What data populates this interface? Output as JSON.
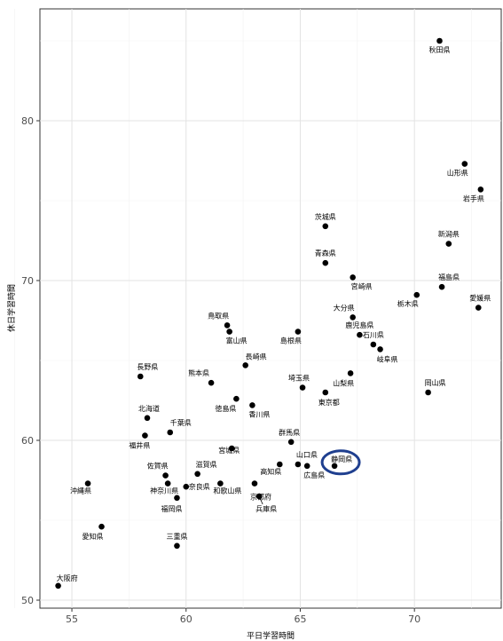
{
  "chart_data": {
    "type": "scatter",
    "title": "",
    "xlabel": "平日学習時間",
    "ylabel": "休日学習時間",
    "xlim": [
      53.6,
      73.8
    ],
    "ylim": [
      49.5,
      87.0
    ],
    "xticks": [
      55,
      60,
      65,
      70
    ],
    "yticks": [
      50,
      60,
      70,
      80
    ],
    "x_tick_labels": [
      "55",
      "60",
      "65",
      "70"
    ],
    "y_tick_labels": [
      "50",
      "60",
      "70",
      "80"
    ],
    "grid": true,
    "highlight_label": "静岡県",
    "points": [
      {
        "label": "秋田県",
        "x": 71.1,
        "y": 85.0
      },
      {
        "label": "山形県",
        "x": 72.2,
        "y": 77.3
      },
      {
        "label": "岩手県",
        "x": 72.9,
        "y": 75.7
      },
      {
        "label": "茨城県",
        "x": 66.1,
        "y": 73.4
      },
      {
        "label": "新潟県",
        "x": 71.5,
        "y": 72.3
      },
      {
        "label": "青森県",
        "x": 66.1,
        "y": 71.1
      },
      {
        "label": "宮崎県",
        "x": 67.3,
        "y": 70.2
      },
      {
        "label": "福島県",
        "x": 71.2,
        "y": 69.6
      },
      {
        "label": "栃木県",
        "x": 70.1,
        "y": 69.1
      },
      {
        "label": "愛媛県",
        "x": 72.8,
        "y": 68.3
      },
      {
        "label": "大分県",
        "x": 67.3,
        "y": 67.7
      },
      {
        "label": "鳥取県",
        "x": 61.8,
        "y": 67.2
      },
      {
        "label": "富山県",
        "x": 61.9,
        "y": 66.8
      },
      {
        "label": "島根県",
        "x": 64.9,
        "y": 66.8
      },
      {
        "label": "鹿児島県",
        "x": 67.6,
        "y": 66.6
      },
      {
        "label": "石川県",
        "x": 68.2,
        "y": 66.0
      },
      {
        "label": "岐阜県",
        "x": 68.5,
        "y": 65.7
      },
      {
        "label": "長崎県",
        "x": 62.6,
        "y": 64.7
      },
      {
        "label": "山梨県",
        "x": 67.2,
        "y": 64.2
      },
      {
        "label": "長野県",
        "x": 58.0,
        "y": 64.0
      },
      {
        "label": "熊本県",
        "x": 61.1,
        "y": 63.6
      },
      {
        "label": "埼玉県",
        "x": 65.1,
        "y": 63.3
      },
      {
        "label": "東京都",
        "x": 66.1,
        "y": 63.0
      },
      {
        "label": "岡山県",
        "x": 70.6,
        "y": 63.0
      },
      {
        "label": "徳島県",
        "x": 62.2,
        "y": 62.6
      },
      {
        "label": "香川県",
        "x": 62.9,
        "y": 62.2
      },
      {
        "label": "北海道",
        "x": 58.3,
        "y": 61.4
      },
      {
        "label": "千葉県",
        "x": 59.3,
        "y": 60.5
      },
      {
        "label": "福井県",
        "x": 58.2,
        "y": 60.3
      },
      {
        "label": "群馬県",
        "x": 64.6,
        "y": 59.9
      },
      {
        "label": "宮城県",
        "x": 62.0,
        "y": 59.5
      },
      {
        "label": "山口県",
        "x": 64.9,
        "y": 58.5
      },
      {
        "label": "静岡県",
        "x": 66.5,
        "y": 58.4
      },
      {
        "label": "広島県",
        "x": 65.3,
        "y": 58.4
      },
      {
        "label": "高知県",
        "x": 64.1,
        "y": 58.5
      },
      {
        "label": "滋賀県",
        "x": 60.5,
        "y": 57.9
      },
      {
        "label": "佐賀県",
        "x": 59.1,
        "y": 57.8
      },
      {
        "label": "沖縄県",
        "x": 55.7,
        "y": 57.3
      },
      {
        "label": "神奈川県",
        "x": 59.2,
        "y": 57.3
      },
      {
        "label": "和歌山県",
        "x": 61.5,
        "y": 57.3
      },
      {
        "label": "京都府",
        "x": 63.0,
        "y": 57.3
      },
      {
        "label": "奈良県",
        "x": 60.0,
        "y": 57.1
      },
      {
        "label": "兵庫県",
        "x": 63.2,
        "y": 56.5
      },
      {
        "label": "福岡県",
        "x": 59.6,
        "y": 56.4
      },
      {
        "label": "愛知県",
        "x": 56.3,
        "y": 54.6
      },
      {
        "label": "三重県",
        "x": 59.6,
        "y": 53.4
      },
      {
        "label": "大阪府",
        "x": 54.4,
        "y": 50.9
      }
    ]
  }
}
